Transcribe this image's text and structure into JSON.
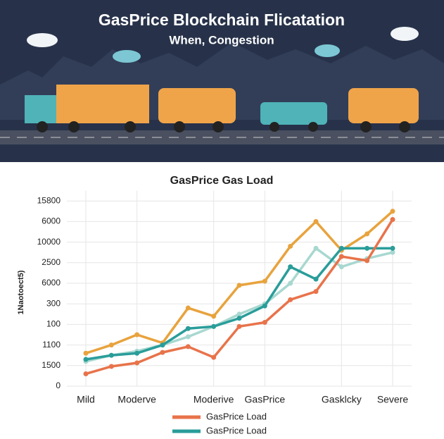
{
  "header": {
    "title": "GasPrice Blockchain Flicatation",
    "subtitle": "When, Congestion"
  },
  "chart_data": {
    "type": "line",
    "title": "GasPrice Gas Load",
    "y_label": "1Naotoect5)",
    "categories": [
      "Mild",
      null,
      "Moderve",
      null,
      null,
      "Moderive",
      null,
      "GasPrice",
      null,
      null,
      "Gasklcky",
      null,
      "Severe"
    ],
    "series": [
      {
        "name": "GasPrice Load",
        "color": "#e8734a",
        "values": [
          0.6,
          0.96,
          1.13,
          1.64,
          1.92,
          1.4,
          2.9,
          3.1,
          4.2,
          4.6,
          6.3,
          6.1,
          8.1
        ]
      },
      {
        "name": "GasPrice Load",
        "color": "#2a9d9a",
        "values": [
          1.3,
          1.5,
          1.6,
          2.0,
          2.8,
          2.9,
          3.3,
          3.9,
          5.8,
          5.2,
          6.7,
          6.7,
          6.7
        ]
      },
      {
        "color": "#e8a33d",
        "values": [
          1.6,
          2.0,
          2.5,
          2.1,
          3.8,
          3.4,
          4.9,
          5.1,
          6.8,
          8.0,
          6.6,
          7.4,
          8.5
        ]
      },
      {
        "color": "#a8d8d0",
        "values": [
          1.2,
          1.5,
          1.7,
          2.0,
          2.4,
          2.9,
          3.5,
          4.0,
          5.0,
          6.7,
          5.8,
          6.2,
          6.5
        ]
      }
    ],
    "ylim": [
      0,
      9.5
    ],
    "yticks": [
      {
        "value": 0,
        "label": "0"
      },
      {
        "value": 1,
        "label": "1500"
      },
      {
        "value": 2,
        "label": "1100"
      },
      {
        "value": 3,
        "label": "100"
      },
      {
        "value": 4,
        "label": "300"
      },
      {
        "value": 5,
        "label": "6000"
      },
      {
        "value": 6,
        "label": "2500"
      },
      {
        "value": 7,
        "label": "10000"
      },
      {
        "value": 8,
        "label": "6000"
      },
      {
        "value": 9,
        "label": "15800"
      }
    ],
    "grid": true
  }
}
